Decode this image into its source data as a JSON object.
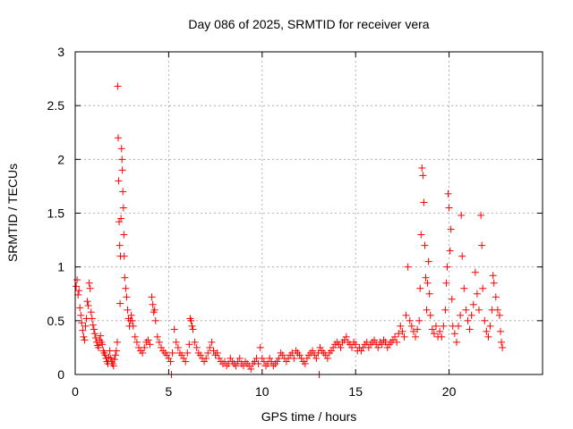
{
  "chart_data": {
    "type": "scatter",
    "title": "Day 086 of 2025, SRMTID for receiver vera",
    "xlabel": "GPS time / hours",
    "ylabel": "SRMTID / TECUs",
    "xlim": [
      0,
      25
    ],
    "ylim": [
      0,
      3
    ],
    "xticks": [
      0,
      5,
      10,
      15,
      20
    ],
    "yticks": [
      0,
      0.5,
      1,
      1.5,
      2,
      2.5,
      3
    ],
    "grid": true,
    "marker": "plus",
    "color": "#ff0000",
    "series": [
      {
        "name": "SRMTID",
        "points": [
          [
            0.05,
            0.82
          ],
          [
            0.1,
            0.88
          ],
          [
            0.15,
            0.74
          ],
          [
            0.2,
            0.78
          ],
          [
            0.25,
            0.62
          ],
          [
            0.3,
            0.55
          ],
          [
            0.35,
            0.48
          ],
          [
            0.4,
            0.41
          ],
          [
            0.45,
            0.35
          ],
          [
            0.5,
            0.32
          ],
          [
            0.55,
            0.45
          ],
          [
            0.6,
            0.52
          ],
          [
            0.65,
            0.68
          ],
          [
            0.7,
            0.64
          ],
          [
            0.75,
            0.85
          ],
          [
            0.8,
            0.8
          ],
          [
            0.85,
            0.58
          ],
          [
            0.9,
            0.52
          ],
          [
            0.95,
            0.46
          ],
          [
            1.0,
            0.42
          ],
          [
            1.05,
            0.38
          ],
          [
            1.1,
            0.34
          ],
          [
            1.15,
            0.3
          ],
          [
            1.2,
            0.27
          ],
          [
            1.25,
            0.25
          ],
          [
            1.3,
            0.32
          ],
          [
            1.35,
            0.36
          ],
          [
            1.4,
            0.3
          ],
          [
            1.45,
            0.28
          ],
          [
            1.5,
            0.22
          ],
          [
            1.55,
            0.2
          ],
          [
            1.6,
            0.18
          ],
          [
            1.65,
            0.15
          ],
          [
            1.7,
            0.12
          ],
          [
            1.75,
            0.1
          ],
          [
            1.8,
            0.16
          ],
          [
            1.85,
            0.22
          ],
          [
            1.9,
            0.15
          ],
          [
            1.95,
            0.12
          ],
          [
            2.0,
            0.1
          ],
          [
            2.05,
            0.08
          ],
          [
            2.1,
            0.14
          ],
          [
            2.15,
            0.18
          ],
          [
            2.2,
            0.22
          ],
          [
            2.25,
            0.3
          ],
          [
            2.28,
            2.68
          ],
          [
            2.3,
            2.2
          ],
          [
            2.32,
            1.8
          ],
          [
            2.35,
            1.42
          ],
          [
            2.38,
            1.2
          ],
          [
            2.4,
            0.66
          ],
          [
            2.42,
            1.1
          ],
          [
            2.45,
            1.45
          ],
          [
            2.48,
            2.1
          ],
          [
            2.5,
            2.0
          ],
          [
            2.52,
            1.9
          ],
          [
            2.55,
            1.7
          ],
          [
            2.58,
            1.55
          ],
          [
            2.6,
            1.3
          ],
          [
            2.62,
            1.1
          ],
          [
            2.65,
            0.9
          ],
          [
            2.7,
            0.8
          ],
          [
            2.75,
            0.72
          ],
          [
            2.8,
            0.6
          ],
          [
            2.85,
            0.52
          ],
          [
            2.9,
            0.45
          ],
          [
            2.95,
            0.5
          ],
          [
            3.0,
            0.55
          ],
          [
            3.05,
            0.5
          ],
          [
            3.1,
            0.45
          ],
          [
            3.2,
            0.35
          ],
          [
            3.3,
            0.3
          ],
          [
            3.4,
            0.25
          ],
          [
            3.5,
            0.22
          ],
          [
            3.6,
            0.2
          ],
          [
            3.7,
            0.25
          ],
          [
            3.8,
            0.3
          ],
          [
            3.9,
            0.32
          ],
          [
            4.0,
            0.28
          ],
          [
            4.1,
            0.72
          ],
          [
            4.15,
            0.65
          ],
          [
            4.2,
            0.58
          ],
          [
            4.25,
            0.6
          ],
          [
            4.3,
            0.5
          ],
          [
            4.4,
            0.35
          ],
          [
            4.5,
            0.3
          ],
          [
            4.6,
            0.25
          ],
          [
            4.7,
            0.22
          ],
          [
            4.8,
            0.2
          ],
          [
            4.9,
            0.18
          ],
          [
            5.0,
            0.15
          ],
          [
            5.1,
            0.12
          ],
          [
            5.15,
            0.0
          ],
          [
            5.2,
            0.2
          ],
          [
            5.3,
            0.42
          ],
          [
            5.4,
            0.3
          ],
          [
            5.5,
            0.25
          ],
          [
            5.6,
            0.2
          ],
          [
            5.7,
            0.18
          ],
          [
            5.8,
            0.15
          ],
          [
            5.9,
            0.12
          ],
          [
            6.0,
            0.2
          ],
          [
            6.1,
            0.28
          ],
          [
            6.15,
            0.52
          ],
          [
            6.2,
            0.5
          ],
          [
            6.25,
            0.45
          ],
          [
            6.3,
            0.42
          ],
          [
            6.4,
            0.3
          ],
          [
            6.5,
            0.25
          ],
          [
            6.6,
            0.2
          ],
          [
            6.7,
            0.18
          ],
          [
            6.8,
            0.15
          ],
          [
            6.9,
            0.12
          ],
          [
            7.0,
            0.15
          ],
          [
            7.1,
            0.2
          ],
          [
            7.2,
            0.25
          ],
          [
            7.3,
            0.3
          ],
          [
            7.4,
            0.22
          ],
          [
            7.5,
            0.18
          ],
          [
            7.6,
            0.2
          ],
          [
            7.7,
            0.15
          ],
          [
            7.8,
            0.12
          ],
          [
            7.9,
            0.1
          ],
          [
            8.0,
            0.12
          ],
          [
            8.1,
            0.08
          ],
          [
            8.2,
            0.1
          ],
          [
            8.3,
            0.15
          ],
          [
            8.4,
            0.12
          ],
          [
            8.5,
            0.1
          ],
          [
            8.6,
            0.08
          ],
          [
            8.7,
            0.12
          ],
          [
            8.8,
            0.15
          ],
          [
            8.9,
            0.1
          ],
          [
            9.0,
            0.08
          ],
          [
            9.1,
            0.12
          ],
          [
            9.2,
            0.1
          ],
          [
            9.3,
            0.08
          ],
          [
            9.4,
            0.05
          ],
          [
            9.5,
            0.1
          ],
          [
            9.6,
            0.12
          ],
          [
            9.7,
            0.15
          ],
          [
            9.8,
            0.1
          ],
          [
            9.9,
            0.25
          ],
          [
            10.0,
            0.15
          ],
          [
            10.1,
            0.12
          ],
          [
            10.2,
            0.08
          ],
          [
            10.3,
            0.1
          ],
          [
            10.4,
            0.15
          ],
          [
            10.5,
            0.12
          ],
          [
            10.6,
            0.08
          ],
          [
            10.7,
            0.1
          ],
          [
            10.8,
            0.12
          ],
          [
            10.9,
            0.15
          ],
          [
            11.0,
            0.2
          ],
          [
            11.1,
            0.18
          ],
          [
            11.2,
            0.15
          ],
          [
            11.3,
            0.12
          ],
          [
            11.4,
            0.15
          ],
          [
            11.5,
            0.18
          ],
          [
            11.6,
            0.2
          ],
          [
            11.7,
            0.15
          ],
          [
            11.8,
            0.22
          ],
          [
            11.9,
            0.2
          ],
          [
            12.0,
            0.18
          ],
          [
            12.1,
            0.15
          ],
          [
            12.2,
            0.12
          ],
          [
            12.3,
            0.1
          ],
          [
            12.4,
            0.15
          ],
          [
            12.5,
            0.18
          ],
          [
            12.6,
            0.2
          ],
          [
            12.7,
            0.22
          ],
          [
            12.8,
            0.18
          ],
          [
            12.9,
            0.15
          ],
          [
            13.0,
            0.2
          ],
          [
            13.05,
            0.0
          ],
          [
            13.1,
            0.25
          ],
          [
            13.2,
            0.22
          ],
          [
            13.3,
            0.2
          ],
          [
            13.4,
            0.18
          ],
          [
            13.5,
            0.15
          ],
          [
            13.6,
            0.2
          ],
          [
            13.7,
            0.22
          ],
          [
            13.8,
            0.25
          ],
          [
            13.9,
            0.28
          ],
          [
            14.0,
            0.3
          ],
          [
            14.1,
            0.28
          ],
          [
            14.2,
            0.25
          ],
          [
            14.3,
            0.3
          ],
          [
            14.4,
            0.32
          ],
          [
            14.5,
            0.35
          ],
          [
            14.6,
            0.3
          ],
          [
            14.7,
            0.28
          ],
          [
            14.8,
            0.25
          ],
          [
            14.9,
            0.3
          ],
          [
            15.0,
            0.28
          ],
          [
            15.1,
            0.22
          ],
          [
            15.2,
            0.25
          ],
          [
            15.3,
            0.22
          ],
          [
            15.4,
            0.25
          ],
          [
            15.5,
            0.28
          ],
          [
            15.6,
            0.3
          ],
          [
            15.7,
            0.25
          ],
          [
            15.8,
            0.28
          ],
          [
            15.9,
            0.3
          ],
          [
            16.0,
            0.32
          ],
          [
            16.1,
            0.28
          ],
          [
            16.2,
            0.25
          ],
          [
            16.3,
            0.3
          ],
          [
            16.4,
            0.28
          ],
          [
            16.5,
            0.32
          ],
          [
            16.6,
            0.3
          ],
          [
            16.7,
            0.25
          ],
          [
            16.8,
            0.28
          ],
          [
            16.9,
            0.3
          ],
          [
            17.0,
            0.32
          ],
          [
            17.1,
            0.35
          ],
          [
            17.2,
            0.3
          ],
          [
            17.3,
            0.38
          ],
          [
            17.4,
            0.45
          ],
          [
            17.5,
            0.4
          ],
          [
            17.6,
            0.35
          ],
          [
            17.7,
            0.55
          ],
          [
            17.8,
            1.0
          ],
          [
            17.9,
            0.5
          ],
          [
            18.0,
            0.45
          ],
          [
            18.1,
            0.4
          ],
          [
            18.2,
            0.35
          ],
          [
            18.3,
            0.42
          ],
          [
            18.4,
            0.5
          ],
          [
            18.45,
            0.8
          ],
          [
            18.5,
            1.3
          ],
          [
            18.55,
            1.92
          ],
          [
            18.6,
            1.85
          ],
          [
            18.65,
            1.6
          ],
          [
            18.7,
            1.2
          ],
          [
            18.75,
            0.9
          ],
          [
            18.8,
            0.6
          ],
          [
            18.85,
            0.85
          ],
          [
            18.9,
            1.05
          ],
          [
            18.95,
            0.75
          ],
          [
            19.0,
            0.55
          ],
          [
            19.1,
            0.42
          ],
          [
            19.2,
            0.38
          ],
          [
            19.3,
            0.45
          ],
          [
            19.4,
            0.35
          ],
          [
            19.5,
            0.4
          ],
          [
            19.6,
            0.35
          ],
          [
            19.7,
            0.45
          ],
          [
            19.8,
            0.6
          ],
          [
            19.85,
            0.85
          ],
          [
            19.9,
            1.0
          ],
          [
            19.95,
            1.68
          ],
          [
            20.0,
            1.55
          ],
          [
            20.05,
            1.15
          ],
          [
            20.1,
            1.35
          ],
          [
            20.15,
            0.7
          ],
          [
            20.2,
            0.45
          ],
          [
            20.3,
            0.38
          ],
          [
            20.4,
            0.3
          ],
          [
            20.5,
            0.45
          ],
          [
            20.6,
            0.55
          ],
          [
            20.65,
            1.48
          ],
          [
            20.7,
            1.1
          ],
          [
            20.8,
            0.8
          ],
          [
            20.9,
            0.6
          ],
          [
            21.0,
            0.5
          ],
          [
            21.1,
            0.42
          ],
          [
            21.2,
            0.55
          ],
          [
            21.3,
            0.65
          ],
          [
            21.4,
            0.95
          ],
          [
            21.5,
            0.75
          ],
          [
            21.6,
            0.6
          ],
          [
            21.7,
            1.48
          ],
          [
            21.75,
            1.2
          ],
          [
            21.8,
            0.8
          ],
          [
            21.9,
            0.5
          ],
          [
            22.0,
            0.4
          ],
          [
            22.1,
            0.35
          ],
          [
            22.2,
            0.45
          ],
          [
            22.3,
            0.6
          ],
          [
            22.35,
            0.92
          ],
          [
            22.4,
            0.85
          ],
          [
            22.5,
            0.72
          ],
          [
            22.6,
            0.6
          ],
          [
            22.7,
            0.55
          ],
          [
            22.75,
            0.4
          ],
          [
            22.8,
            0.3
          ],
          [
            22.85,
            0.25
          ]
        ]
      }
    ]
  }
}
